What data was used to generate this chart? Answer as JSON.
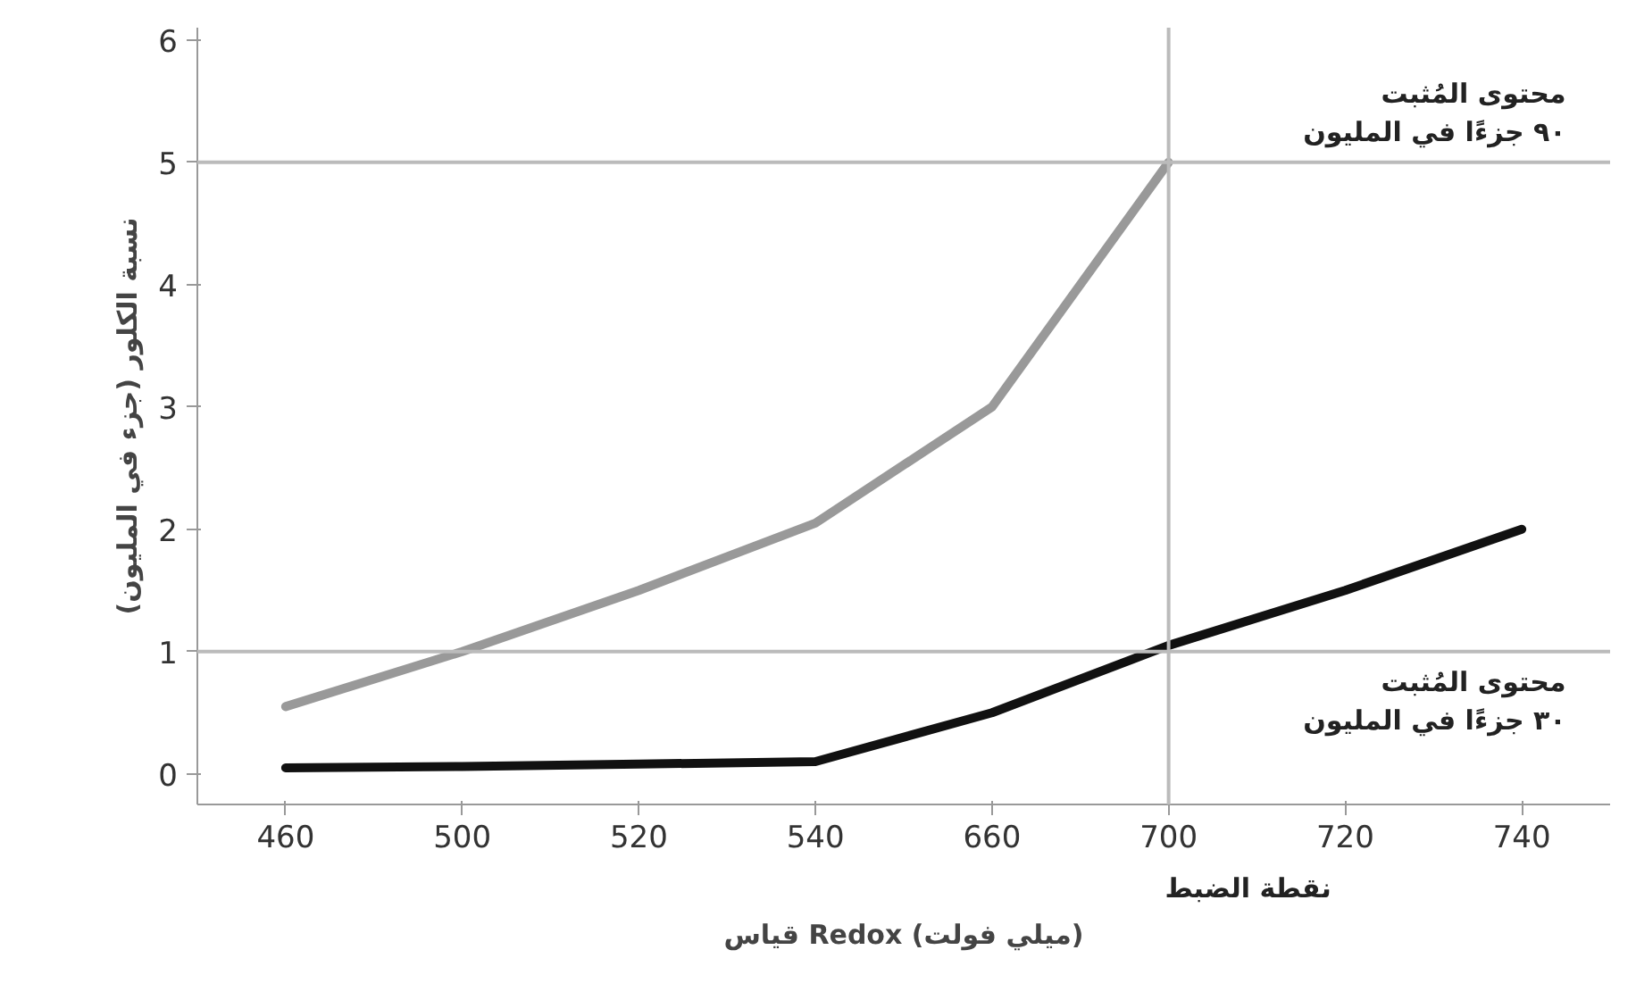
{
  "chart_data": {
    "type": "line",
    "xlabel": "قياس Redox (ميلي فولت)",
    "ylabel": "نسبة الكلور (جزء في المليون)",
    "categories": [
      "460",
      "500",
      "520",
      "540",
      "660",
      "700",
      "720",
      "740"
    ],
    "series": [
      {
        "color": "#999999",
        "values": [
          0.55,
          1.0,
          1.5,
          2.05,
          3.0,
          5.0,
          null,
          null
        ]
      },
      {
        "color": "#111111",
        "values": [
          0.05,
          0.06,
          0.08,
          0.1,
          0.5,
          1.05,
          1.5,
          2.0
        ]
      }
    ],
    "ylim": [
      -0.25,
      6.1
    ],
    "yticks": [
      0,
      1,
      2,
      3,
      4,
      5,
      6
    ],
    "grid": false,
    "marker": "none",
    "line_style": "solid",
    "ref_lines": [
      {
        "axis": "y",
        "value": 5,
        "color": "#bbbbbb"
      },
      {
        "axis": "y",
        "value": 1,
        "color": "#bbbbbb"
      },
      {
        "axis": "x",
        "value": "700",
        "color": "#bbbbbb"
      }
    ],
    "annotations": [
      {
        "text": "محتوى المُثبت\n٩٠ جزءًا في المليون",
        "x": "740",
        "y": 5
      },
      {
        "text": "محتوى المُثبت\n٣٠ جزءًا في المليون",
        "x": "740",
        "y": 1
      },
      "نقطة الضبط"
    ]
  }
}
